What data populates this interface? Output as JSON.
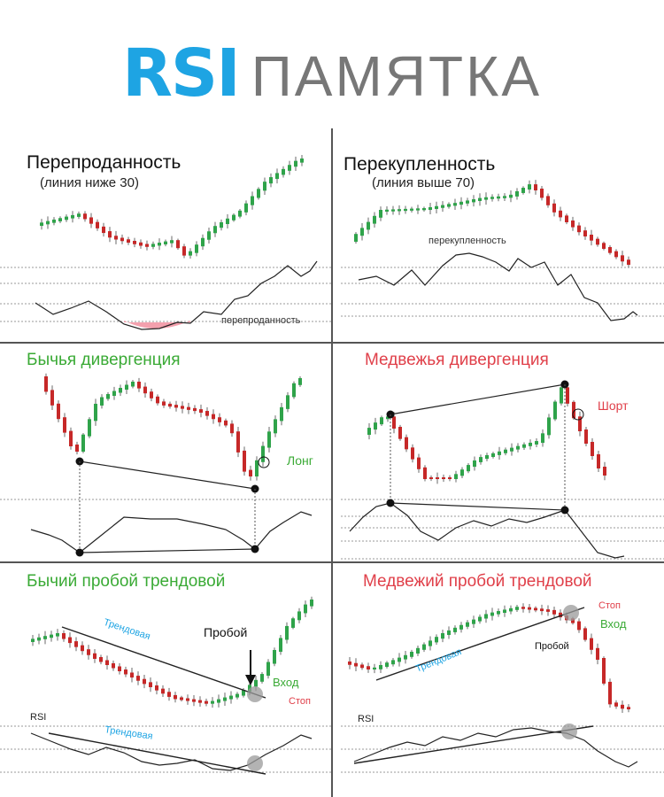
{
  "header": {
    "title_accent": "RSI",
    "title_rest": "ПАМЯТКА"
  },
  "colors": {
    "accent": "#1ea4e3",
    "bull": "#3aaa35",
    "bear": "#e0404a",
    "candle_up": "#2fa34a",
    "candle_down": "#c62828"
  },
  "panels": {
    "oversold": {
      "title": "Перепроданность",
      "subtitle": "(линия ниже 30)",
      "rsi_label": "перепроданность"
    },
    "overbought": {
      "title": "Перекупленность",
      "subtitle": "(линия выше 70)",
      "rsi_label": "перекупленность",
      "levels": [
        "70",
        "50",
        "40",
        "30"
      ]
    },
    "bull_div": {
      "title": "Бычья дивергенция",
      "signal": "Лонг"
    },
    "bear_div": {
      "title": "Медвежья дивергенция",
      "signal": "Шорт",
      "levels": [
        "80",
        "50",
        "40",
        "30",
        "20"
      ]
    },
    "bull_break": {
      "title": "Бычий пробой трендовой",
      "trend": "Трендовая",
      "trend_rsi": "Трендовая",
      "breakout": "Пробой",
      "entry": "Вход",
      "stop": "Стоп",
      "rsi": "RSI"
    },
    "bear_break": {
      "title": "Медвежий пробой трендовой",
      "trend": "Трендовая",
      "breakout": "Пробой",
      "entry": "Вход",
      "stop": "Стоп",
      "rsi": "RSI",
      "levels": [
        "70",
        "50",
        "30"
      ]
    }
  }
}
